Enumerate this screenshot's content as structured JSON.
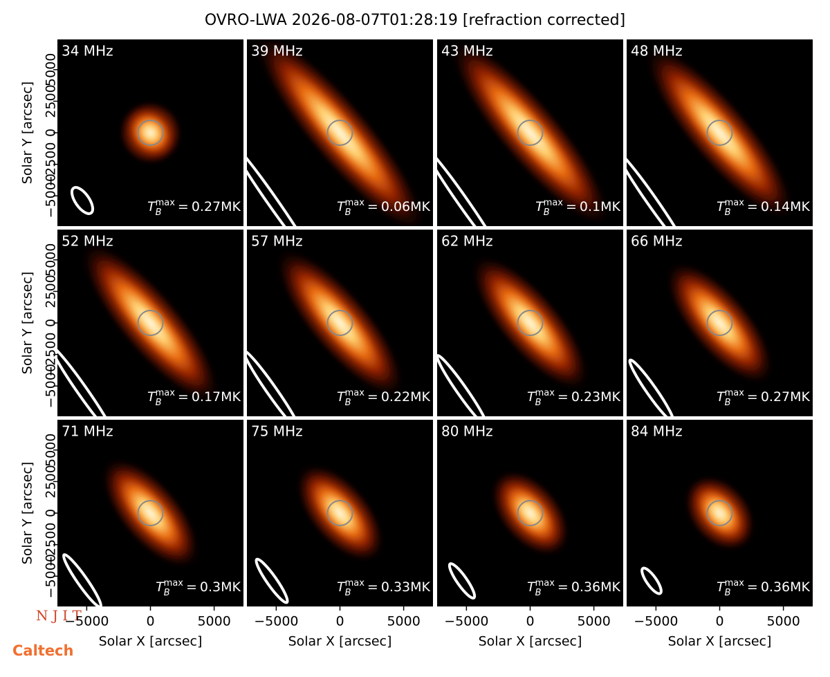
{
  "chart_data": {
    "type": "heatmap",
    "title": "OVRO-LWA 2026-08-07T01:28:19 [refraction corrected]",
    "xlabel": "Solar X [arcsec]",
    "ylabel": "Solar Y [arcsec]",
    "xlim": [
      -7300,
      7300
    ],
    "ylim": [
      -7400,
      7400
    ],
    "xticks": [
      {
        "value": -5000,
        "label": "−5000"
      },
      0,
      5000
    ],
    "yticks": [
      {
        "value": -5000,
        "label": "−5000"
      },
      {
        "value": -2500,
        "label": "−2500"
      },
      0,
      2500,
      5000
    ],
    "categories": [
      "34 MHz",
      "39 MHz",
      "43 MHz",
      "48 MHz",
      "52 MHz",
      "57 MHz",
      "62 MHz",
      "66 MHz",
      "71 MHz",
      "75 MHz",
      "80 MHz",
      "84 MHz"
    ],
    "values": [
      0.27,
      0.06,
      0.1,
      0.14,
      0.17,
      0.22,
      0.23,
      0.27,
      0.3,
      0.33,
      0.36,
      0.36
    ],
    "value_labels": [
      "0.27MK",
      "0.06MK",
      "0.1MK",
      "0.14MK",
      "0.17MK",
      "0.22MK",
      "0.23MK",
      "0.27MK",
      "0.3MK",
      "0.33MK",
      "0.36MK",
      "0.36MK"
    ],
    "tb_symbol": "T",
    "tb_sub": "B",
    "tb_sup": "max",
    "tb_eq": "=",
    "logos": [
      "N J I T",
      "Caltech"
    ]
  }
}
